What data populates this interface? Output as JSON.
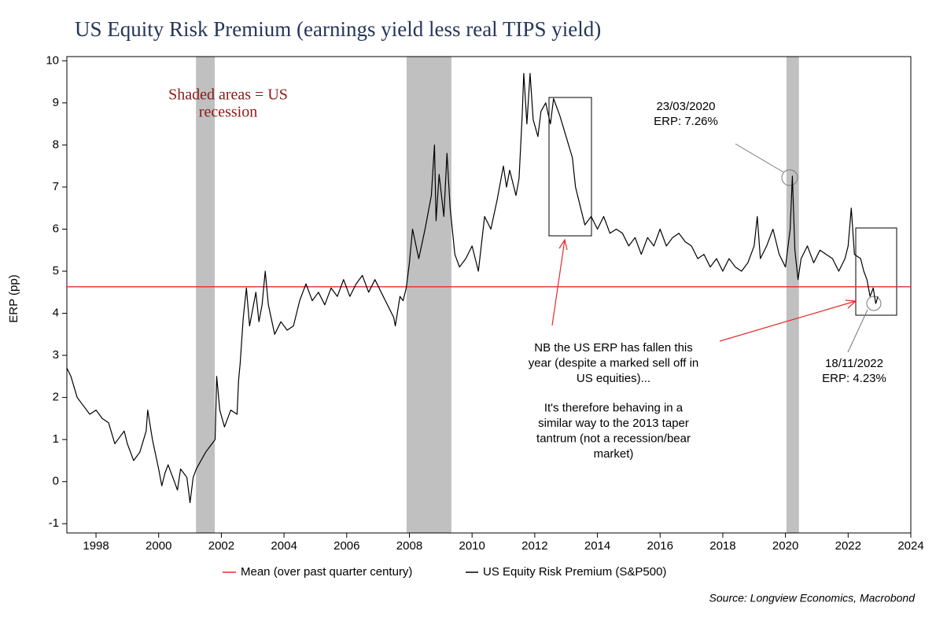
{
  "chart_data": {
    "type": "line",
    "title": "US Equity Risk Premium (earnings yield less real TIPS yield)",
    "y_label": "ERP (pp)",
    "source": "Source: Longview Economics, Macrobond",
    "xlim": [
      1997.07,
      2024
    ],
    "xticks": [
      1998,
      2000,
      2002,
      2004,
      2006,
      2008,
      2010,
      2012,
      2014,
      2016,
      2018,
      2020,
      2022,
      2024
    ],
    "ylim": [
      -1.22,
      10.1
    ],
    "yticks": [
      -1,
      0,
      1,
      2,
      3,
      4,
      5,
      6,
      7,
      8,
      9,
      10
    ],
    "shaded_regions": {
      "color": "#c0c0c0",
      "ranges": [
        [
          2001.19,
          2001.79
        ],
        [
          2007.91,
          2009.34
        ],
        [
          2020.03,
          2020.43
        ]
      ]
    },
    "mean": {
      "name": "Mean (over past quarter century)",
      "value": 4.63,
      "color": "#e52b2b"
    },
    "x": [
      1997.07,
      1997.2,
      1997.4,
      1997.6,
      1997.8,
      1998.0,
      1998.2,
      1998.4,
      1998.6,
      1998.7,
      1998.9,
      1999.0,
      1999.2,
      1999.4,
      1999.6,
      1999.65,
      1999.8,
      2000.0,
      2000.1,
      2000.2,
      2000.3,
      2000.5,
      2000.6,
      2000.7,
      2000.9,
      2001.0,
      2001.1,
      2001.2,
      2001.5,
      2001.7,
      2001.8,
      2001.85,
      2001.95,
      2002.1,
      2002.3,
      2002.5,
      2002.55,
      2002.6,
      2002.7,
      2002.8,
      2002.9,
      2003.1,
      2003.2,
      2003.3,
      2003.4,
      2003.5,
      2003.7,
      2003.9,
      2004.1,
      2004.3,
      2004.5,
      2004.7,
      2004.9,
      2005.1,
      2005.3,
      2005.5,
      2005.7,
      2005.9,
      2006.1,
      2006.3,
      2006.5,
      2006.7,
      2006.9,
      2007.1,
      2007.3,
      2007.5,
      2007.55,
      2007.7,
      2007.8,
      2007.9,
      2008.0,
      2008.1,
      2008.3,
      2008.5,
      2008.7,
      2008.8,
      2008.85,
      2008.95,
      2009.1,
      2009.2,
      2009.3,
      2009.45,
      2009.6,
      2009.8,
      2010.0,
      2010.2,
      2010.4,
      2010.6,
      2010.8,
      2011.0,
      2011.1,
      2011.2,
      2011.4,
      2011.5,
      2011.6,
      2011.65,
      2011.75,
      2011.85,
      2011.95,
      2012.1,
      2012.2,
      2012.35,
      2012.5,
      2012.6,
      2012.8,
      2013.0,
      2013.2,
      2013.3,
      2013.5,
      2013.6,
      2013.8,
      2014.0,
      2014.2,
      2014.4,
      2014.6,
      2014.8,
      2015.0,
      2015.2,
      2015.4,
      2015.6,
      2015.8,
      2016.0,
      2016.2,
      2016.4,
      2016.6,
      2016.8,
      2017.0,
      2017.2,
      2017.4,
      2017.6,
      2017.8,
      2018.0,
      2018.2,
      2018.4,
      2018.6,
      2018.8,
      2019.0,
      2019.1,
      2019.2,
      2019.4,
      2019.6,
      2019.8,
      2020.0,
      2020.15,
      2020.22,
      2020.3,
      2020.4,
      2020.5,
      2020.7,
      2020.9,
      2021.1,
      2021.3,
      2021.5,
      2021.7,
      2021.9,
      2022.0,
      2022.1,
      2022.2,
      2022.4,
      2022.5,
      2022.6,
      2022.7,
      2022.8,
      2022.88,
      2022.95
    ],
    "series": [
      {
        "name": "US Equity Risk Premium (S&P500)",
        "color": "#000000",
        "values": [
          2.7,
          2.5,
          2.0,
          1.8,
          1.6,
          1.7,
          1.5,
          1.4,
          0.9,
          1.0,
          1.2,
          0.9,
          0.5,
          0.7,
          1.2,
          1.7,
          1.0,
          0.3,
          -0.1,
          0.2,
          0.4,
          0.0,
          -0.2,
          0.3,
          0.1,
          -0.5,
          0.1,
          0.3,
          0.7,
          0.9,
          1.0,
          2.5,
          1.7,
          1.3,
          1.7,
          1.6,
          2.4,
          2.8,
          3.9,
          4.6,
          3.7,
          4.5,
          3.8,
          4.2,
          5.0,
          4.2,
          3.5,
          3.8,
          3.6,
          3.7,
          4.3,
          4.7,
          4.3,
          4.5,
          4.2,
          4.6,
          4.4,
          4.8,
          4.4,
          4.7,
          4.9,
          4.5,
          4.8,
          4.5,
          4.2,
          3.9,
          3.7,
          4.4,
          4.3,
          4.6,
          5.2,
          6.0,
          5.3,
          6.0,
          6.8,
          8.0,
          6.2,
          7.3,
          6.3,
          7.8,
          6.5,
          5.4,
          5.1,
          5.3,
          5.6,
          5.0,
          6.3,
          6.0,
          6.7,
          7.5,
          7.0,
          7.4,
          6.8,
          7.2,
          8.7,
          9.7,
          8.5,
          9.7,
          8.6,
          8.2,
          8.8,
          9.0,
          8.5,
          9.1,
          8.7,
          8.2,
          7.7,
          7.0,
          6.4,
          6.1,
          6.3,
          6.0,
          6.3,
          5.9,
          6.0,
          5.9,
          5.6,
          5.8,
          5.4,
          5.8,
          5.6,
          6.0,
          5.6,
          5.8,
          5.9,
          5.7,
          5.6,
          5.3,
          5.4,
          5.1,
          5.3,
          5.0,
          5.3,
          5.1,
          5.0,
          5.2,
          5.6,
          6.3,
          5.3,
          5.6,
          6.0,
          5.4,
          5.1,
          6.0,
          7.26,
          5.5,
          4.8,
          5.3,
          5.6,
          5.2,
          5.5,
          5.4,
          5.3,
          5.0,
          5.3,
          5.6,
          6.5,
          5.4,
          5.3,
          5.0,
          4.8,
          4.4,
          4.6,
          4.23,
          4.4
        ]
      }
    ],
    "annotations": [
      {
        "lines": [
          "Shaded areas = US",
          "recession"
        ]
      },
      {
        "lines": [
          "23/03/2020",
          "ERP: 7.26%"
        ]
      },
      {
        "lines": [
          "18/11/2022",
          "ERP: 4.23%"
        ]
      },
      {
        "lines": [
          "NB the US ERP has fallen this",
          "year (despite a marked sell off in",
          "US equities)...",
          "It's therefore behaving in a",
          "similar way to the 2013 taper",
          "tantrum (not a recession/bear",
          "market)"
        ]
      }
    ]
  }
}
